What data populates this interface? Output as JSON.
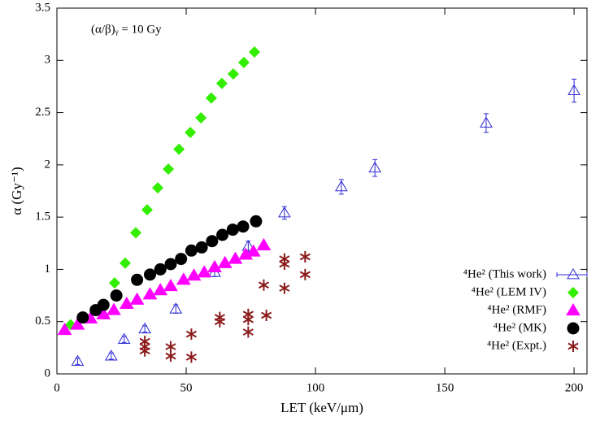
{
  "chart_data": {
    "type": "scatter",
    "annotation": "(α/β)ᵧ = 10 Gy",
    "xlabel": "LET (keV/μm)",
    "ylabel": "α (Gy⁻¹)",
    "xlim": [
      0,
      205
    ],
    "ylim": [
      0,
      3.5
    ],
    "xticks": [
      0,
      50,
      100,
      150,
      200
    ],
    "yticks": [
      0,
      0.5,
      1,
      1.5,
      2,
      2.5,
      3,
      3.5
    ],
    "legend": "lower right",
    "series": [
      {
        "name": "⁴He² (This work)",
        "color": "#2b2bd6",
        "marker": "triangle-open",
        "x": [
          8,
          21,
          26,
          34,
          46,
          61,
          74,
          88,
          110,
          123,
          166,
          200
        ],
        "values": [
          0.12,
          0.17,
          0.33,
          0.43,
          0.62,
          0.97,
          1.22,
          1.54,
          1.79,
          1.97,
          2.4,
          2.71
        ],
        "errors": [
          0.03,
          0.03,
          0.03,
          0.03,
          0.04,
          0.04,
          0.05,
          0.06,
          0.07,
          0.08,
          0.09,
          0.11
        ]
      },
      {
        "name": "⁴He² (LEM IV)",
        "color": "#33ee00",
        "marker": "diamond",
        "x": [
          5.3,
          22.3,
          26.4,
          30.5,
          34.9,
          39,
          43.1,
          47.2,
          51.6,
          55.7,
          59.7,
          63.8,
          68.2,
          72.3,
          76.4
        ],
        "values": [
          0.47,
          0.87,
          1.06,
          1.35,
          1.57,
          1.78,
          1.96,
          2.15,
          2.31,
          2.45,
          2.64,
          2.78,
          2.87,
          2.98,
          3.08
        ]
      },
      {
        "name": "⁴He² (RMF)",
        "color": "#ff00ff",
        "marker": "triangle",
        "x": [
          3,
          8,
          13,
          18,
          22,
          27,
          31,
          36,
          40,
          44,
          49,
          53,
          57,
          61,
          65,
          69,
          73,
          76,
          80
        ],
        "values": [
          0.42,
          0.47,
          0.53,
          0.57,
          0.61,
          0.67,
          0.71,
          0.76,
          0.8,
          0.84,
          0.9,
          0.94,
          0.97,
          1.02,
          1.06,
          1.1,
          1.14,
          1.17,
          1.23
        ]
      },
      {
        "name": "⁴He² (MK)",
        "color": "#000000",
        "marker": "circle",
        "x": [
          10,
          15,
          18,
          23,
          31,
          36,
          40,
          44,
          48,
          52,
          56,
          60,
          64,
          68,
          72,
          77
        ],
        "values": [
          0.54,
          0.61,
          0.66,
          0.75,
          0.9,
          0.95,
          1,
          1.05,
          1.1,
          1.18,
          1.21,
          1.27,
          1.33,
          1.38,
          1.41,
          1.46
        ]
      },
      {
        "name": "⁴He² (Expt.)",
        "color": "#8b1a1a",
        "marker": "asterisk",
        "x": [
          34,
          34,
          34,
          44,
          44,
          52,
          52,
          63,
          63,
          74,
          74,
          74,
          80,
          81,
          88,
          88,
          88,
          96,
          96
        ],
        "values": [
          0.31,
          0.26,
          0.22,
          0.26,
          0.17,
          0.38,
          0.16,
          0.54,
          0.5,
          0.57,
          0.52,
          0.4,
          0.85,
          0.56,
          1.1,
          1.05,
          0.82,
          1.12,
          0.95
        ]
      }
    ]
  }
}
